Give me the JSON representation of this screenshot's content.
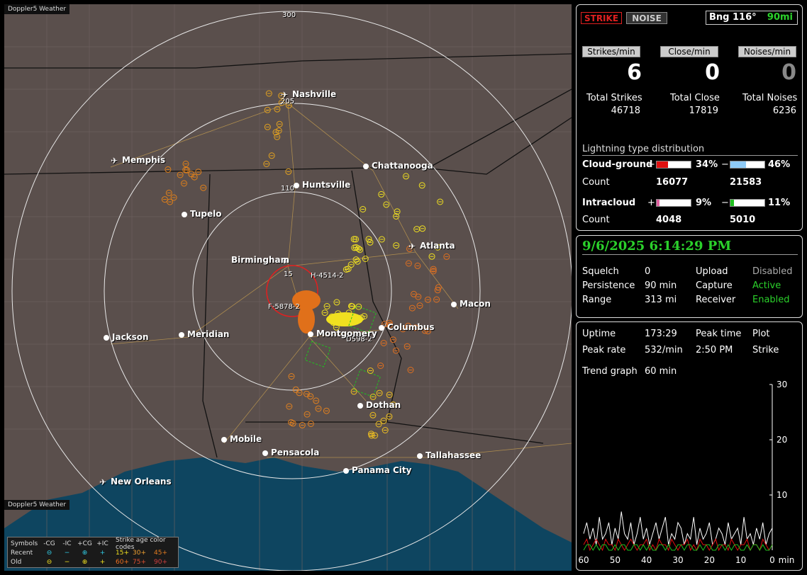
{
  "app": {
    "title": "Doppler5 Weather",
    "footer_title": "Doppler5 Weather"
  },
  "map": {
    "ring_labels": [
      "300",
      "205",
      "110",
      "15"
    ],
    "cities": [
      {
        "name": "Nashville",
        "airport": true
      },
      {
        "name": "Memphis",
        "airport": true
      },
      {
        "name": "Chattanooga",
        "airport": false
      },
      {
        "name": "Huntsville",
        "airport": false
      },
      {
        "name": "Tupelo",
        "airport": false
      },
      {
        "name": "Atlanta",
        "airport": true
      },
      {
        "name": "Birmingham",
        "airport": false
      },
      {
        "name": "Macon",
        "airport": false
      },
      {
        "name": "Jackson",
        "airport": false
      },
      {
        "name": "Meridian",
        "airport": false
      },
      {
        "name": "Montgomery",
        "airport": false
      },
      {
        "name": "Columbus",
        "airport": false
      },
      {
        "name": "Dothan",
        "airport": false
      },
      {
        "name": "Mobile",
        "airport": false
      },
      {
        "name": "Pensacola",
        "airport": false
      },
      {
        "name": "Tallahassee",
        "airport": false
      },
      {
        "name": "Panama City",
        "airport": false
      },
      {
        "name": "New Orleans",
        "airport": true
      }
    ],
    "storm_labels": [
      "H-4514-2",
      "F-5878-2",
      "D598-2"
    ],
    "legend": {
      "symbols_label": "Symbols",
      "cols": [
        "-CG",
        "-IC",
        "+CG",
        "+IC"
      ],
      "age_header": "Strike age color codes",
      "recent_label": "Recent",
      "old_label": "Old",
      "recent_ages": [
        "15+",
        "30+",
        "45+"
      ],
      "old_ages": [
        "60+",
        "75+",
        "90+"
      ],
      "recent_symbols": [
        "⊖",
        "−",
        "⊕",
        "+"
      ],
      "old_symbols": [
        "⊖",
        "−",
        "⊕",
        "+"
      ]
    }
  },
  "status": {
    "strike_btn": "STRIKE",
    "noise_btn": "NOISE",
    "bearing": "Bng 116°",
    "range": "90mi"
  },
  "rates": {
    "strikes_label": "Strikes/min",
    "close_label": "Close/min",
    "noises_label": "Noises/min",
    "strikes": "6",
    "close": "0",
    "noises": "0"
  },
  "totals": {
    "strikes_label": "Total Strikes",
    "close_label": "Total Close",
    "noises_label": "Total Noises",
    "strikes": "46718",
    "close": "17819",
    "noises": "6236"
  },
  "distribution": {
    "title": "Lightning type distribution",
    "cg_label": "Cloud-ground",
    "cg_pos_pct": "34%",
    "cg_neg_pct": "46%",
    "cg_pos_fraction": 0.34,
    "cg_neg_fraction": 0.46,
    "count_label": "Count",
    "cg_pos_count": "16077",
    "cg_neg_count": "21583",
    "ic_label": "Intracloud",
    "ic_pos_pct": "9%",
    "ic_neg_pct": "11%",
    "ic_pos_fraction": 0.09,
    "ic_neg_fraction": 0.11,
    "ic_pos_count": "4048",
    "ic_neg_count": "5010",
    "plus": "+",
    "minus": "−",
    "colors": {
      "cg_pos": "#e01010",
      "cg_neg": "#8ecaf6",
      "ic_pos": "#e060a0",
      "ic_neg": "#20c020"
    }
  },
  "datetime": "9/6/2025 6:14:29 PM",
  "settings": {
    "squelch_label": "Squelch",
    "squelch": "0",
    "persistence_label": "Persistence",
    "persistence": "90 min",
    "range_label": "Range",
    "range": "313 mi",
    "upload_label": "Upload",
    "upload": "Disabled",
    "capture_label": "Capture",
    "capture": "Active",
    "receiver_label": "Receiver",
    "receiver": "Enabled"
  },
  "stats": {
    "uptime_label": "Uptime",
    "uptime": "173:29",
    "peak_time_label": "Peak time",
    "peak_time": "2:50 PM",
    "plot_label": "Plot",
    "plot": "Strike",
    "peak_rate_label": "Peak rate",
    "peak_rate": "532/min",
    "trend_label": "Trend graph",
    "trend": "60 min"
  },
  "chart_data": {
    "type": "line",
    "x_ticks": [
      "60",
      "50",
      "40",
      "30",
      "20",
      "10",
      "0"
    ],
    "x_unit": "min",
    "y_ticks": [
      "30",
      "20",
      "10"
    ],
    "ylim": [
      0,
      30
    ],
    "xlim": [
      60,
      0
    ],
    "series": [
      {
        "color": "#ffffff",
        "values": [
          3,
          5,
          2,
          4,
          1,
          6,
          2,
          3,
          5,
          1,
          4,
          2,
          7,
          3,
          2,
          5,
          1,
          3,
          6,
          2,
          4,
          1,
          3,
          5,
          2,
          4,
          6,
          1,
          3,
          2,
          5,
          4,
          1,
          3,
          2,
          6,
          1,
          4,
          2,
          3,
          5,
          1,
          2,
          4,
          3,
          1,
          5,
          2,
          3,
          4,
          1,
          6,
          2,
          3,
          1,
          4,
          2,
          5,
          1,
          3,
          4
        ]
      },
      {
        "color": "#e01010",
        "values": [
          1,
          2,
          0,
          1,
          2,
          1,
          0,
          2,
          1,
          1,
          0,
          2,
          1,
          0,
          1,
          2,
          1,
          0,
          1,
          1,
          2,
          0,
          1,
          0,
          2,
          1,
          1,
          0,
          2,
          1,
          0,
          1,
          1,
          2,
          0,
          1,
          0,
          2,
          1,
          1,
          0,
          1,
          2,
          0,
          1,
          1,
          0,
          2,
          1,
          0,
          1,
          1,
          2,
          0,
          1,
          1,
          0,
          2,
          1,
          0,
          1
        ]
      },
      {
        "color": "#20c020",
        "values": [
          0,
          1,
          1,
          0,
          1,
          0,
          1,
          1,
          0,
          0,
          1,
          0,
          1,
          1,
          0,
          0,
          1,
          1,
          0,
          1,
          0,
          1,
          0,
          0,
          1,
          1,
          0,
          1,
          0,
          0,
          1,
          1,
          0,
          1,
          1,
          0,
          0,
          1,
          0,
          1,
          1,
          0,
          0,
          1,
          1,
          0,
          1,
          0,
          1,
          1,
          0,
          0,
          1,
          0,
          1,
          1,
          0,
          1,
          0,
          0,
          1
        ]
      }
    ]
  }
}
